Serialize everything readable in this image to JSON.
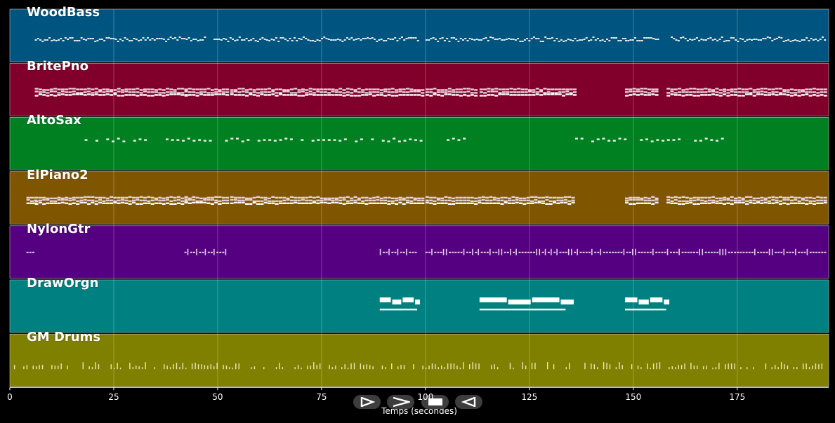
{
  "chart_data": {
    "type": "piano-roll",
    "xlabel": "Temps (secondes)",
    "xlim": [
      0,
      197
    ],
    "xticks": [
      0,
      25,
      50,
      75,
      100,
      125,
      150,
      175
    ],
    "tracks": [
      {
        "name": "WoodBass",
        "color": "#005580",
        "pattern": "bass",
        "segments": [
          [
            6,
            47
          ],
          [
            49,
            98
          ],
          [
            100,
            148
          ],
          [
            148,
            156
          ],
          [
            159,
            196
          ]
        ]
      },
      {
        "name": "BritePno",
        "color": "#80002b",
        "pattern": "chords",
        "segments": [
          [
            6,
            42
          ],
          [
            42,
            52
          ],
          [
            53,
            89
          ],
          [
            89,
            99
          ],
          [
            100,
            112
          ],
          [
            113,
            136
          ],
          [
            148,
            156
          ],
          [
            158,
            196
          ]
        ]
      },
      {
        "name": "AltoSax",
        "color": "#008020",
        "pattern": "melody",
        "segments": [
          [
            18,
            110
          ],
          [
            136,
            172
          ]
        ]
      },
      {
        "name": "ElPiano2",
        "color": "#805500",
        "pattern": "chords",
        "segments": [
          [
            4,
            6
          ],
          [
            6,
            42
          ],
          [
            42,
            52
          ],
          [
            53,
            89
          ],
          [
            89,
            99
          ],
          [
            100,
            136
          ],
          [
            148,
            156
          ],
          [
            158,
            196
          ]
        ]
      },
      {
        "name": "NylonGtr",
        "color": "#550080",
        "pattern": "guitar",
        "segments": [
          [
            4,
            6
          ],
          [
            42,
            52
          ],
          [
            89,
            98
          ],
          [
            100,
            196
          ]
        ]
      },
      {
        "name": "DrawOrgn",
        "color": "#008080",
        "pattern": "organ",
        "segments": [
          [
            89,
            99
          ],
          [
            113,
            136
          ],
          [
            148,
            159
          ]
        ]
      },
      {
        "name": "GM Drums",
        "color": "#808000",
        "pattern": "drums",
        "segments": [
          [
            1,
            196
          ]
        ]
      }
    ]
  },
  "transport": {
    "play_icon": "play-icon",
    "forward_icon": "forward-icon",
    "stop_icon": "stop-icon",
    "back_icon": "back-icon"
  }
}
